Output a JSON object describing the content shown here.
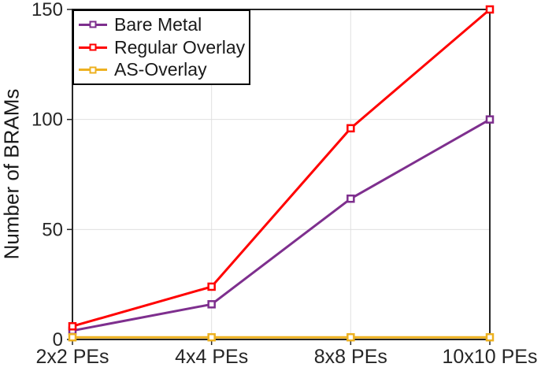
{
  "chart_data": {
    "type": "line",
    "title": "",
    "categories": [
      "2x2 PEs",
      "4x4 PEs",
      "8x8 PEs",
      "10x10 PEs"
    ],
    "series": [
      {
        "name": "Bare Metal",
        "values": [
          4,
          16,
          64,
          100
        ],
        "color": "#7E2F8E"
      },
      {
        "name": "Regular Overlay",
        "values": [
          6,
          24,
          96,
          150
        ],
        "color": "#FF0000"
      },
      {
        "name": "AS-Overlay",
        "values": [
          1,
          1,
          1,
          1
        ],
        "color": "#EDB120"
      }
    ],
    "xlabel": "",
    "ylabel": "Number of BRAMs",
    "ylim": [
      0,
      150
    ],
    "yticks": [
      0,
      50,
      100,
      150
    ],
    "ytick_labels": [
      "0",
      "50",
      "100",
      "150"
    ],
    "grid": true,
    "legend_position": "top-left",
    "marker": "open-square",
    "line_width": 3
  },
  "colors": {
    "axis": "#262626",
    "tick_text": "#262626",
    "grid": "#e0e0e0",
    "background": "#ffffff"
  }
}
